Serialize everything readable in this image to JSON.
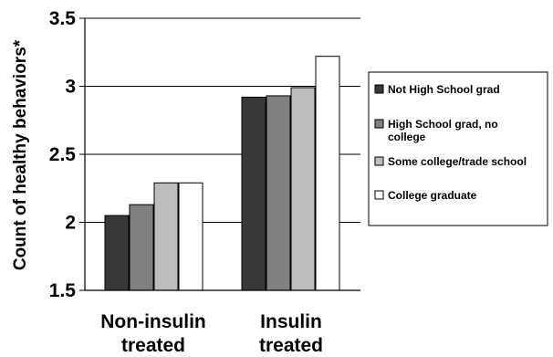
{
  "chart_data": {
    "type": "bar",
    "title": "",
    "xlabel": "",
    "ylabel": "Count of healthy behaviors*",
    "ylim": [
      1.5,
      3.5
    ],
    "yticks": [
      "1.5",
      "2",
      "2.5",
      "3",
      "3.5"
    ],
    "grid": true,
    "legend_position": "right",
    "categories": [
      [
        "Non-insulin",
        "treated"
      ],
      [
        "Insulin",
        "treated"
      ]
    ],
    "series": [
      {
        "name": [
          "Not High School grad"
        ],
        "color": "#383838",
        "values": [
          2.05,
          2.92
        ]
      },
      {
        "name": [
          "High School grad, no",
          "college"
        ],
        "color": "#808080",
        "values": [
          2.13,
          2.93
        ]
      },
      {
        "name": [
          "Some college/trade school"
        ],
        "color": "#bdbdbd",
        "values": [
          2.29,
          2.99
        ]
      },
      {
        "name": [
          "College graduate"
        ],
        "color": "#ffffff",
        "values": [
          2.29,
          3.22
        ]
      }
    ]
  }
}
